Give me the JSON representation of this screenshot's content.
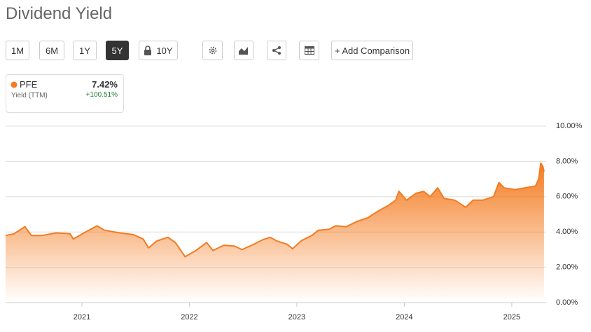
{
  "title": "Dividend Yield",
  "toolbar": {
    "ranges": [
      "1M",
      "6M",
      "1Y",
      "5Y",
      "10Y"
    ],
    "add": "+ Add Comparison"
  },
  "summary": {
    "label": "Yield (TTM)",
    "value": "7.42%",
    "change": "+100.51%"
  },
  "chart_data": {
    "type": "area",
    "xlim": [
      2020.29,
      2025.32
    ],
    "xticks": [
      2021,
      2022,
      2023,
      2024,
      2025
    ],
    "ylim": [
      0,
      10
    ],
    "yticks": [
      {
        "value": 0,
        "label": "0.00%"
      },
      {
        "value": 2,
        "label": "2.00%"
      },
      {
        "value": 4,
        "label": "4.00%"
      },
      {
        "value": 6,
        "label": "6.00%"
      },
      {
        "value": 8,
        "label": "8.00%"
      },
      {
        "value": 10,
        "label": "10.00%"
      }
    ],
    "grid": true,
    "series": [
      {
        "name": "PFE",
        "color": "#f47b20",
        "x": [
          2020.29,
          2020.37,
          2020.47,
          2020.53,
          2020.63,
          2020.76,
          2020.89,
          2020.92,
          2021.02,
          2021.14,
          2021.21,
          2021.35,
          2021.48,
          2021.57,
          2021.62,
          2021.7,
          2021.8,
          2021.87,
          2021.96,
          2022.06,
          2022.16,
          2022.22,
          2022.32,
          2022.42,
          2022.49,
          2022.58,
          2022.68,
          2022.75,
          2022.81,
          2022.91,
          2022.96,
          2023.04,
          2023.14,
          2023.2,
          2023.3,
          2023.36,
          2023.46,
          2023.56,
          2023.66,
          2023.76,
          2023.85,
          2023.92,
          2023.95,
          2024.02,
          2024.11,
          2024.18,
          2024.24,
          2024.31,
          2024.37,
          2024.47,
          2024.57,
          2024.64,
          2024.73,
          2024.83,
          2024.88,
          2024.93,
          2025.03,
          2025.12,
          2025.22,
          2025.25,
          2025.27,
          2025.29,
          2025.3
        ],
        "values": [
          3.8,
          3.9,
          4.3,
          3.8,
          3.8,
          3.95,
          3.9,
          3.6,
          3.95,
          4.35,
          4.1,
          3.95,
          3.85,
          3.6,
          3.1,
          3.5,
          3.7,
          3.4,
          2.6,
          2.95,
          3.4,
          2.95,
          3.25,
          3.2,
          3.0,
          3.25,
          3.55,
          3.7,
          3.5,
          3.3,
          3.05,
          3.5,
          3.8,
          4.1,
          4.15,
          4.35,
          4.3,
          4.6,
          4.8,
          5.2,
          5.5,
          5.8,
          6.3,
          5.8,
          6.2,
          6.3,
          6.0,
          6.5,
          5.9,
          5.8,
          5.4,
          5.8,
          5.8,
          6.0,
          6.8,
          6.5,
          6.4,
          6.5,
          6.6,
          7.0,
          7.9,
          7.7,
          7.42
        ]
      }
    ]
  }
}
